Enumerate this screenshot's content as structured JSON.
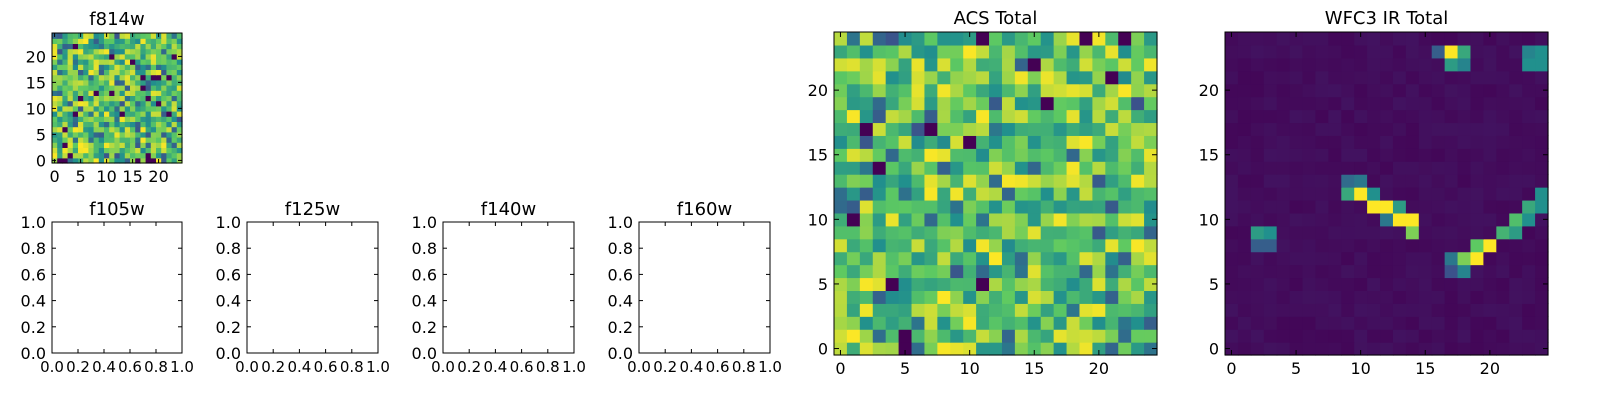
{
  "colors": {
    "colormap": [
      "#440154",
      "#3b528b",
      "#21908d",
      "#5dc962",
      "#fde725"
    ],
    "frame": "#000000",
    "background": "#ffffff"
  },
  "chart_data": [
    {
      "id": "f814w",
      "type": "heatmap",
      "title": "f814w",
      "grid_size": 25,
      "pattern": "noise",
      "seed": 8141,
      "xticks": [
        0,
        5,
        10,
        15,
        20
      ],
      "yticks": [
        0,
        5,
        10,
        15,
        20
      ],
      "xlim": [
        -0.5,
        24.5
      ],
      "ylim": [
        -0.5,
        24.5
      ]
    },
    {
      "id": "f105w",
      "type": "empty",
      "title": "f105w",
      "xlim": [
        0.0,
        1.0
      ],
      "ylim": [
        0.0,
        1.0
      ],
      "xticks": [
        "0.0",
        "0.2",
        "0.4",
        "0.6",
        "0.8",
        "1.0"
      ],
      "yticks": [
        "0.0",
        "0.2",
        "0.4",
        "0.6",
        "0.8",
        "1.0"
      ]
    },
    {
      "id": "f125w",
      "type": "empty",
      "title": "f125w",
      "xlim": [
        0.0,
        1.0
      ],
      "ylim": [
        0.0,
        1.0
      ],
      "xticks": [
        "0.0",
        "0.2",
        "0.4",
        "0.6",
        "0.8",
        "1.0"
      ],
      "yticks": [
        "0.0",
        "0.2",
        "0.4",
        "0.6",
        "0.8",
        "1.0"
      ]
    },
    {
      "id": "f140w",
      "type": "empty",
      "title": "f140w",
      "xlim": [
        0.0,
        1.0
      ],
      "ylim": [
        0.0,
        1.0
      ],
      "xticks": [
        "0.0",
        "0.2",
        "0.4",
        "0.6",
        "0.8",
        "1.0"
      ],
      "yticks": [
        "0.0",
        "0.2",
        "0.4",
        "0.6",
        "0.8",
        "1.0"
      ]
    },
    {
      "id": "f160w",
      "type": "empty",
      "title": "f160w",
      "xlim": [
        0.0,
        1.0
      ],
      "ylim": [
        0.0,
        1.0
      ],
      "xticks": [
        "0.0",
        "0.2",
        "0.4",
        "0.6",
        "0.8",
        "1.0"
      ],
      "yticks": [
        "0.0",
        "0.2",
        "0.4",
        "0.6",
        "0.8",
        "1.0"
      ]
    },
    {
      "id": "acs_total",
      "type": "heatmap",
      "title": "ACS Total",
      "grid_size": 25,
      "pattern": "noise",
      "seed": 2718,
      "xticks": [
        0,
        5,
        10,
        15,
        20
      ],
      "yticks": [
        0,
        5,
        10,
        15,
        20
      ],
      "xlim": [
        -0.5,
        24.5
      ],
      "ylim": [
        -0.5,
        24.5
      ]
    },
    {
      "id": "wfc3_ir_total",
      "type": "heatmap",
      "title": "WFC3 IR Total",
      "grid_size": 25,
      "pattern": "sparse",
      "background_level": 0.03,
      "seed": 3141,
      "xticks": [
        0,
        5,
        10,
        15,
        20
      ],
      "yticks": [
        0,
        5,
        10,
        15,
        20
      ],
      "xlim": [
        -0.5,
        24.5
      ],
      "ylim": [
        -0.5,
        24.5
      ],
      "bright_cells": [
        {
          "col": 17,
          "row": 23,
          "v": 1.0
        },
        {
          "col": 18,
          "row": 23,
          "v": 0.6
        },
        {
          "col": 17,
          "row": 22,
          "v": 0.55
        },
        {
          "col": 18,
          "row": 22,
          "v": 0.45
        },
        {
          "col": 16,
          "row": 23,
          "v": 0.3
        },
        {
          "col": 23,
          "row": 23,
          "v": 0.45
        },
        {
          "col": 24,
          "row": 23,
          "v": 0.5
        },
        {
          "col": 23,
          "row": 22,
          "v": 0.5
        },
        {
          "col": 24,
          "row": 22,
          "v": 0.5
        },
        {
          "col": 9,
          "row": 13,
          "v": 0.35
        },
        {
          "col": 10,
          "row": 13,
          "v": 0.4
        },
        {
          "col": 9,
          "row": 12,
          "v": 0.6
        },
        {
          "col": 10,
          "row": 12,
          "v": 1.0
        },
        {
          "col": 11,
          "row": 12,
          "v": 0.5
        },
        {
          "col": 11,
          "row": 11,
          "v": 1.0
        },
        {
          "col": 12,
          "row": 11,
          "v": 1.0
        },
        {
          "col": 13,
          "row": 11,
          "v": 0.55
        },
        {
          "col": 12,
          "row": 10,
          "v": 0.4
        },
        {
          "col": 13,
          "row": 10,
          "v": 1.0
        },
        {
          "col": 14,
          "row": 10,
          "v": 1.0
        },
        {
          "col": 14,
          "row": 9,
          "v": 0.8
        },
        {
          "col": 2,
          "row": 9,
          "v": 0.55
        },
        {
          "col": 3,
          "row": 9,
          "v": 0.5
        },
        {
          "col": 2,
          "row": 8,
          "v": 0.3
        },
        {
          "col": 3,
          "row": 8,
          "v": 0.3
        },
        {
          "col": 24,
          "row": 12,
          "v": 0.5
        },
        {
          "col": 23,
          "row": 11,
          "v": 0.6
        },
        {
          "col": 24,
          "row": 11,
          "v": 0.5
        },
        {
          "col": 22,
          "row": 10,
          "v": 0.7
        },
        {
          "col": 23,
          "row": 10,
          "v": 0.5
        },
        {
          "col": 21,
          "row": 9,
          "v": 0.65
        },
        {
          "col": 22,
          "row": 9,
          "v": 0.55
        },
        {
          "col": 19,
          "row": 8,
          "v": 0.75
        },
        {
          "col": 20,
          "row": 8,
          "v": 1.0
        },
        {
          "col": 19,
          "row": 7,
          "v": 1.0
        },
        {
          "col": 18,
          "row": 7,
          "v": 0.8
        },
        {
          "col": 17,
          "row": 7,
          "v": 0.4
        },
        {
          "col": 18,
          "row": 6,
          "v": 0.45
        },
        {
          "col": 17,
          "row": 6,
          "v": 0.25
        }
      ]
    }
  ]
}
